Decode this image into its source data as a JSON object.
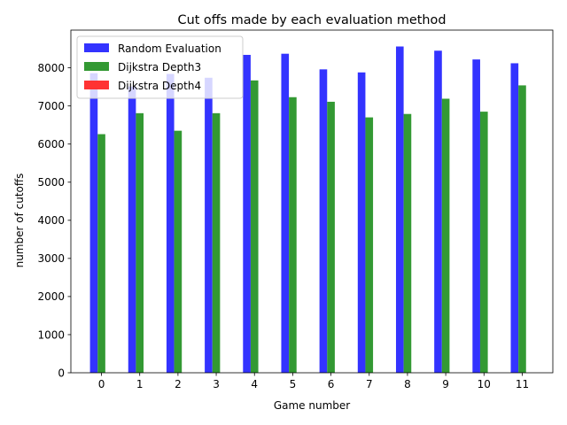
{
  "chart_data": {
    "type": "bar",
    "title": "Cut offs made by each evaluation method",
    "xlabel": "Game number",
    "ylabel": "number of cutoffs",
    "categories": [
      "0",
      "1",
      "2",
      "3",
      "4",
      "5",
      "6",
      "7",
      "8",
      "9",
      "10",
      "11"
    ],
    "series": [
      {
        "name": "Random Evaluation",
        "color": "#3333ff",
        "values": [
          7860,
          7510,
          7840,
          7740,
          8340,
          8370,
          7960,
          7880,
          8560,
          8450,
          8220,
          8120
        ]
      },
      {
        "name": "Dijkstra Depth3",
        "color": "#339933",
        "values": [
          6260,
          6810,
          6350,
          6810,
          7670,
          7230,
          7110,
          6700,
          6790,
          7190,
          6850,
          7540
        ]
      },
      {
        "name": "Dijkstra Depth4",
        "color": "#ff3333",
        "values": [
          0,
          0,
          0,
          0,
          0,
          0,
          0,
          0,
          0,
          0,
          0,
          0
        ]
      }
    ],
    "ylim": [
      0,
      8990
    ],
    "yticks": [
      "0",
      "1000",
      "2000",
      "3000",
      "4000",
      "5000",
      "6000",
      "7000",
      "8000"
    ],
    "legend_position": "upper-left",
    "grid": false
  }
}
